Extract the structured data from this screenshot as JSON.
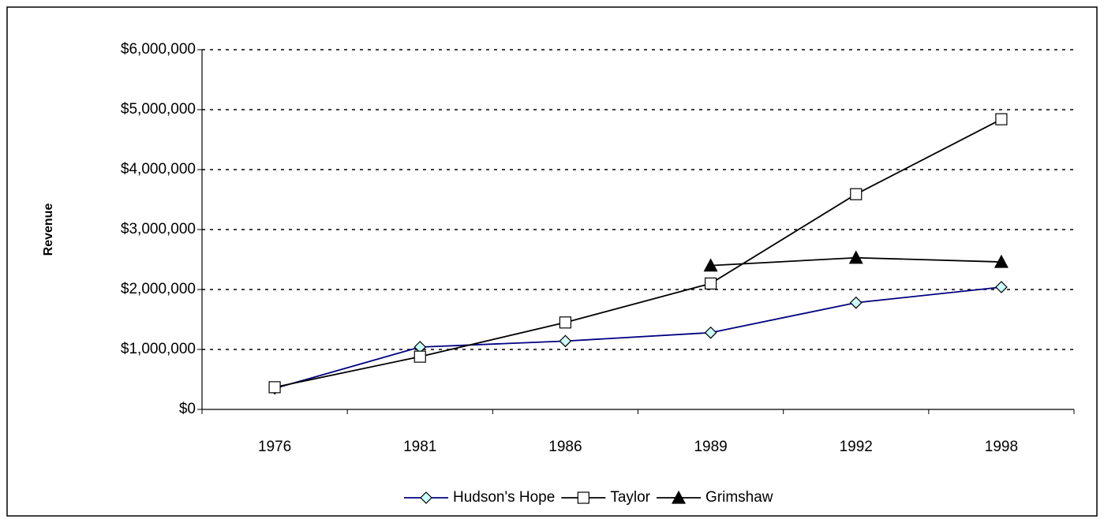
{
  "chart_data": {
    "type": "line",
    "y_label": "Revenue",
    "categories": [
      "1976",
      "1981",
      "1986",
      "1989",
      "1992",
      "1998"
    ],
    "series": [
      {
        "name": "Hudson's Hope",
        "color": "#000080",
        "marker": "diamond",
        "marker_fill": "#ccffff",
        "values": [
          350000,
          1040000,
          1140000,
          1280000,
          1780000,
          2040000
        ]
      },
      {
        "name": "Taylor",
        "color": "#000000",
        "marker": "square",
        "marker_fill": "#ffffff",
        "values": [
          370000,
          880000,
          1450000,
          2100000,
          3590000,
          4840000
        ]
      },
      {
        "name": "Grimshaw",
        "color": "#000000",
        "marker": "triangle",
        "marker_fill": "#000000",
        "values": [
          null,
          null,
          null,
          2400000,
          2530000,
          2460000
        ]
      }
    ],
    "ylim": [
      0,
      6000000
    ],
    "yticks": [
      {
        "value": 0,
        "label": "$0"
      },
      {
        "value": 1000000,
        "label": "$1,000,000"
      },
      {
        "value": 2000000,
        "label": "$2,000,000"
      },
      {
        "value": 3000000,
        "label": "$3,000,000"
      },
      {
        "value": 4000000,
        "label": "$4,000,000"
      },
      {
        "value": 5000000,
        "label": "$5,000,000"
      },
      {
        "value": 6000000,
        "label": "$6,000,000"
      }
    ],
    "grid": true,
    "legend": "bottom"
  }
}
